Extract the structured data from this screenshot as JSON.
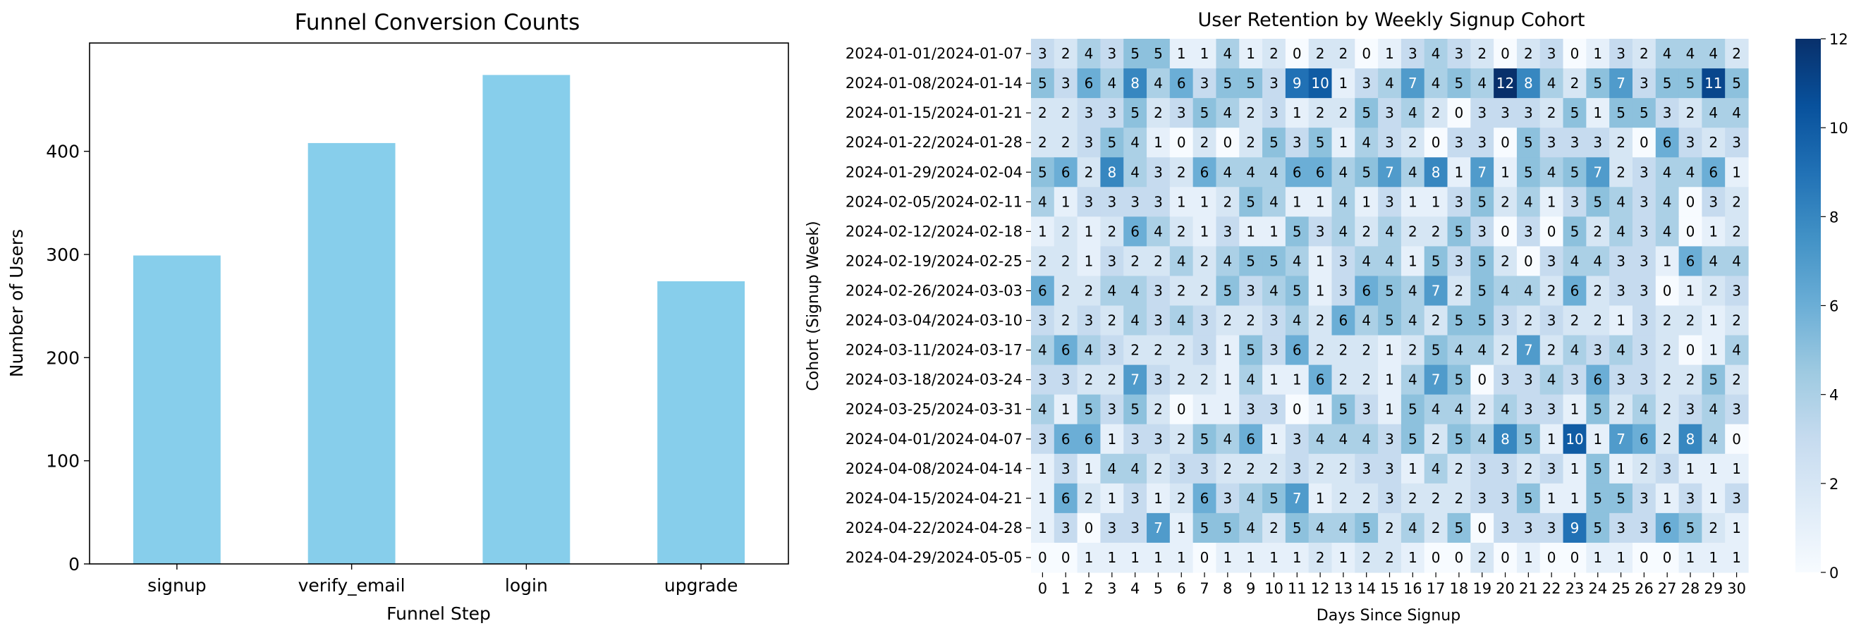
{
  "chart_data": [
    {
      "type": "bar",
      "title": "Funnel Conversion Counts",
      "xlabel": "Funnel Step",
      "ylabel": "Number of Users",
      "categories": [
        "signup",
        "verify_email",
        "login",
        "upgrade"
      ],
      "values": [
        299,
        408,
        474,
        274
      ],
      "ylim": [
        0,
        505
      ],
      "yticks": [
        0,
        100,
        200,
        300,
        400
      ],
      "bar_color": "#87ceeb",
      "grid": false
    },
    {
      "type": "heatmap",
      "title": "User Retention by Weekly Signup Cohort",
      "xlabel": "Days Since Signup",
      "ylabel": "Cohort (Signup Week)",
      "colormap": "Blues",
      "vmin": 0,
      "vmax": 12,
      "colorbar_ticks": [
        0,
        2,
        4,
        6,
        8,
        10,
        12
      ],
      "x": [
        0,
        1,
        2,
        3,
        4,
        5,
        6,
        7,
        8,
        9,
        10,
        11,
        12,
        13,
        14,
        15,
        16,
        17,
        18,
        19,
        20,
        21,
        22,
        23,
        24,
        25,
        26,
        27,
        28,
        29,
        30
      ],
      "y": [
        "2024-01-01/2024-01-07",
        "2024-01-08/2024-01-14",
        "2024-01-15/2024-01-21",
        "2024-01-22/2024-01-28",
        "2024-01-29/2024-02-04",
        "2024-02-05/2024-02-11",
        "2024-02-12/2024-02-18",
        "2024-02-19/2024-02-25",
        "2024-02-26/2024-03-03",
        "2024-03-04/2024-03-10",
        "2024-03-11/2024-03-17",
        "2024-03-18/2024-03-24",
        "2024-03-25/2024-03-31",
        "2024-04-01/2024-04-07",
        "2024-04-08/2024-04-14",
        "2024-04-15/2024-04-21",
        "2024-04-22/2024-04-28",
        "2024-04-29/2024-05-05"
      ],
      "values": [
        [
          3,
          2,
          4,
          3,
          5,
          5,
          1,
          1,
          4,
          1,
          2,
          0,
          2,
          2,
          0,
          1,
          3,
          4,
          3,
          2,
          0,
          2,
          3,
          0,
          1,
          3,
          2,
          4,
          4,
          4,
          2
        ],
        [
          5,
          3,
          6,
          4,
          8,
          4,
          6,
          3,
          5,
          5,
          3,
          9,
          10,
          1,
          3,
          4,
          7,
          4,
          5,
          4,
          12,
          8,
          4,
          2,
          5,
          7,
          3,
          5,
          5,
          11,
          5
        ],
        [
          2,
          2,
          3,
          3,
          5,
          2,
          3,
          5,
          4,
          2,
          3,
          1,
          2,
          2,
          5,
          3,
          4,
          2,
          0,
          3,
          3,
          3,
          2,
          5,
          1,
          5,
          5,
          3,
          2,
          4,
          4
        ],
        [
          2,
          2,
          3,
          5,
          4,
          1,
          0,
          2,
          0,
          2,
          5,
          3,
          5,
          1,
          4,
          3,
          2,
          0,
          3,
          3,
          0,
          5,
          3,
          3,
          3,
          2,
          0,
          6,
          3,
          2,
          3
        ],
        [
          5,
          6,
          2,
          8,
          4,
          3,
          2,
          6,
          4,
          4,
          4,
          6,
          6,
          4,
          5,
          7,
          4,
          8,
          1,
          7,
          1,
          5,
          4,
          5,
          7,
          2,
          3,
          4,
          4,
          6,
          1
        ],
        [
          4,
          1,
          3,
          3,
          3,
          3,
          1,
          1,
          2,
          5,
          4,
          1,
          1,
          4,
          1,
          3,
          1,
          1,
          3,
          5,
          2,
          4,
          1,
          3,
          5,
          4,
          3,
          4,
          0,
          3,
          2
        ],
        [
          1,
          2,
          1,
          2,
          6,
          4,
          2,
          1,
          3,
          1,
          1,
          5,
          3,
          4,
          2,
          4,
          2,
          2,
          5,
          3,
          0,
          3,
          0,
          5,
          2,
          4,
          3,
          4,
          0,
          1,
          2
        ],
        [
          2,
          2,
          1,
          3,
          2,
          2,
          4,
          2,
          4,
          5,
          5,
          4,
          1,
          3,
          4,
          4,
          1,
          5,
          3,
          5,
          2,
          0,
          3,
          4,
          4,
          3,
          3,
          1,
          6,
          4,
          4
        ],
        [
          6,
          2,
          2,
          4,
          4,
          3,
          2,
          2,
          5,
          3,
          4,
          5,
          1,
          3,
          6,
          5,
          4,
          7,
          2,
          5,
          4,
          4,
          2,
          6,
          2,
          3,
          3,
          0,
          1,
          2,
          3
        ],
        [
          3,
          2,
          3,
          2,
          4,
          3,
          4,
          3,
          2,
          2,
          3,
          4,
          2,
          6,
          4,
          5,
          4,
          2,
          5,
          5,
          3,
          2,
          3,
          2,
          2,
          1,
          3,
          2,
          2,
          1,
          2
        ],
        [
          4,
          6,
          4,
          3,
          2,
          2,
          2,
          3,
          1,
          5,
          3,
          6,
          2,
          2,
          2,
          1,
          2,
          5,
          4,
          4,
          2,
          7,
          2,
          4,
          3,
          4,
          3,
          2,
          0,
          1,
          4
        ],
        [
          3,
          3,
          2,
          2,
          7,
          3,
          2,
          2,
          1,
          4,
          1,
          1,
          6,
          2,
          2,
          1,
          4,
          7,
          5,
          0,
          3,
          3,
          4,
          3,
          6,
          3,
          3,
          2,
          2,
          5,
          2
        ],
        [
          4,
          1,
          5,
          3,
          5,
          2,
          0,
          1,
          1,
          3,
          3,
          0,
          1,
          5,
          3,
          1,
          5,
          4,
          4,
          2,
          4,
          3,
          3,
          1,
          5,
          2,
          4,
          2,
          3,
          4,
          3
        ],
        [
          3,
          6,
          6,
          1,
          3,
          3,
          2,
          5,
          4,
          6,
          1,
          3,
          4,
          4,
          4,
          3,
          5,
          2,
          5,
          4,
          8,
          5,
          1,
          10,
          1,
          7,
          6,
          2,
          8,
          4,
          0
        ],
        [
          1,
          3,
          1,
          4,
          4,
          2,
          3,
          3,
          2,
          2,
          2,
          3,
          2,
          2,
          3,
          3,
          1,
          4,
          2,
          3,
          3,
          2,
          3,
          1,
          5,
          1,
          2,
          3,
          1,
          1,
          1
        ],
        [
          1,
          6,
          2,
          1,
          3,
          1,
          2,
          6,
          3,
          4,
          5,
          7,
          1,
          2,
          2,
          3,
          2,
          2,
          2,
          3,
          3,
          5,
          1,
          1,
          5,
          5,
          3,
          1,
          3,
          1,
          3
        ],
        [
          1,
          3,
          0,
          3,
          3,
          7,
          1,
          5,
          5,
          4,
          2,
          5,
          4,
          4,
          5,
          2,
          4,
          2,
          5,
          0,
          3,
          3,
          3,
          9,
          5,
          3,
          3,
          6,
          5,
          2,
          1
        ],
        [
          0,
          0,
          1,
          1,
          1,
          1,
          1,
          0,
          1,
          1,
          1,
          1,
          2,
          1,
          2,
          2,
          1,
          0,
          0,
          2,
          0,
          1,
          0,
          0,
          1,
          1,
          0,
          0,
          1,
          1,
          1
        ]
      ]
    }
  ]
}
